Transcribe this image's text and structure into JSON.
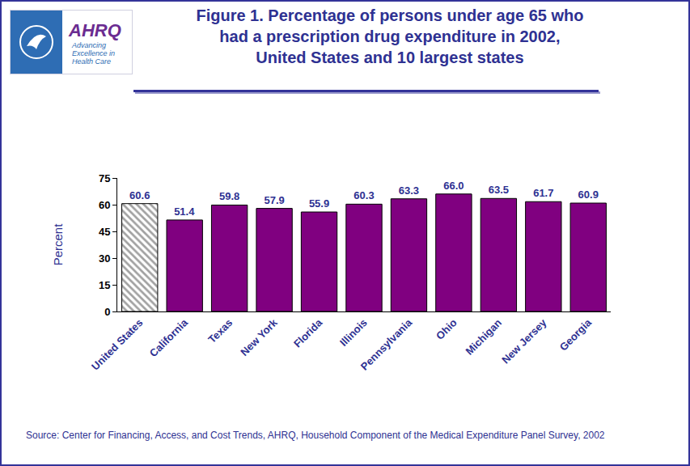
{
  "chart_data": {
    "type": "bar",
    "title": "Figure 1. Percentage of persons under age 65 who\nhad a prescription drug expenditure in 2002,\nUnited States and 10 largest states",
    "categories": [
      "United States",
      "California",
      "Texas",
      "New York",
      "Florida",
      "Illinois",
      "Pennsylvania",
      "Ohio",
      "Michigan",
      "New Jersey",
      "Georgia"
    ],
    "values": [
      60.6,
      51.4,
      59.8,
      57.9,
      55.9,
      60.3,
      63.3,
      66.0,
      63.5,
      61.7,
      60.9
    ],
    "value_labels": [
      "60.6",
      "51.4",
      "59.8",
      "57.9",
      "55.9",
      "60.3",
      "63.3",
      "66.0",
      "63.5",
      "61.7",
      "60.9"
    ],
    "colors": [
      "#333399",
      "#800080",
      "#800080",
      "#800080",
      "#800080",
      "#800080",
      "#800080",
      "#800080",
      "#800080",
      "#800080",
      "#800080"
    ],
    "ylabel": "Percent",
    "ylim": [
      0,
      75
    ],
    "yticks": [
      0,
      15,
      30,
      45,
      60,
      75
    ],
    "grid": false,
    "data_labels": true,
    "source": "Source: Center for Financing, Access, and Cost Trends, AHRQ, Household Component of the Medical Expenditure Panel Survey, 2002",
    "logo": {
      "name": "AHRQ",
      "tagline": "Advancing Excellence in Health Care"
    }
  }
}
